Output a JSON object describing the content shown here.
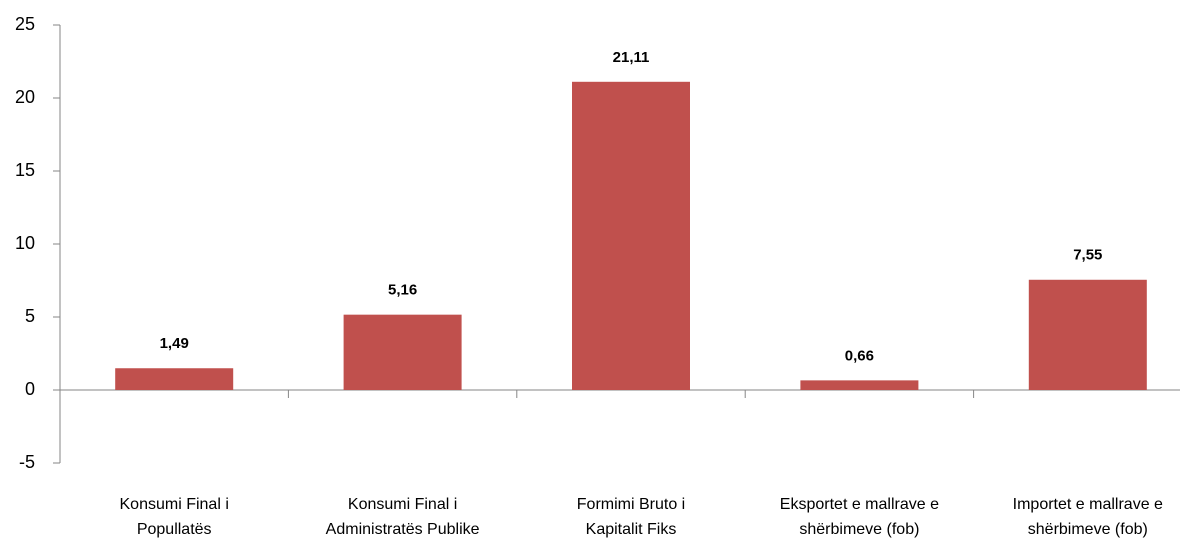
{
  "chart_data": {
    "type": "bar",
    "categories": [
      [
        "Konsumi Final i",
        "Popullatës"
      ],
      [
        "Konsumi Final i",
        "Administratës Publike"
      ],
      [
        "Formimi Bruto i",
        "Kapitalit Fiks"
      ],
      [
        "Eksportet e mallrave e",
        "shërbimeve (fob)"
      ],
      [
        "Importet e mallrave e",
        "shërbimeve (fob)"
      ]
    ],
    "values": [
      1.49,
      5.16,
      21.11,
      0.66,
      7.55
    ],
    "value_labels": [
      "1,49",
      "5,16",
      "21,11",
      "0,66",
      "7,55"
    ],
    "color": "#c0504d",
    "ylim": [
      -5,
      25
    ],
    "yticks": [
      -5,
      0,
      5,
      10,
      15,
      20,
      25
    ]
  }
}
